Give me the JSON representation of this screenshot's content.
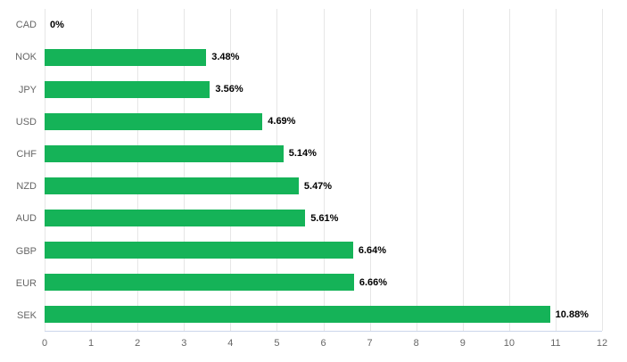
{
  "chart_data": {
    "type": "bar",
    "orientation": "horizontal",
    "title": "",
    "xlabel": "",
    "ylabel": "",
    "categories": [
      "CAD",
      "NOK",
      "JPY",
      "USD",
      "CHF",
      "NZD",
      "AUD",
      "GBP",
      "EUR",
      "SEK"
    ],
    "values": [
      0,
      3.48,
      3.56,
      4.69,
      5.14,
      5.47,
      5.61,
      6.64,
      6.66,
      10.88
    ],
    "data_labels": [
      "0%",
      "3.48%",
      "3.56%",
      "4.69%",
      "5.14%",
      "5.47%",
      "5.61%",
      "6.64%",
      "6.66%",
      "10.88%"
    ],
    "xlim": [
      0,
      12
    ],
    "x_ticks": [
      0,
      1,
      2,
      3,
      4,
      5,
      6,
      7,
      8,
      9,
      10,
      11,
      12
    ],
    "grid": true,
    "legend": "none",
    "colors": {
      "bar": "#15b358",
      "gridline": "#e6e6e6",
      "axis_line": "#ccd6eb",
      "tick_label": "#666666",
      "data_label": "#000000"
    }
  }
}
